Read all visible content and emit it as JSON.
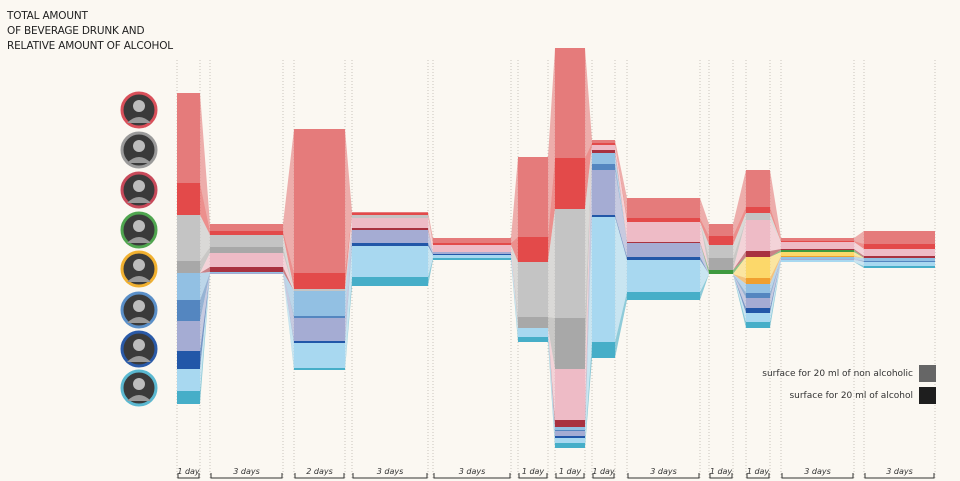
{
  "chart_data": {
    "type": "area",
    "title": [
      "TOTAL AMOUNT",
      "OF BEVERAGE DRUNK AND",
      "RELATIVE AMOUNT OF ALCOHOL"
    ],
    "periods": [
      "1 day",
      "3 days",
      "2 days",
      "3 days",
      "3 days",
      "1 day",
      "1 day",
      "1 day",
      "3 days",
      "1 day",
      "1 day",
      "3 days",
      "3 days"
    ],
    "people": [
      {
        "ring": "#d9505a",
        "non": "#e57b7b",
        "alc": "#e34a4a"
      },
      {
        "ring": "#9a9a9a",
        "non": "#c4c4c4",
        "alc": "#a8a8a8"
      },
      {
        "ring": "#c84a5a",
        "non": "#eebbc6",
        "alc": "#a83240"
      },
      {
        "ring": "#4fa54f",
        "non": "#8fcf8f",
        "alc": "#3f9a3f"
      },
      {
        "ring": "#f0b030",
        "non": "#fcd86a",
        "alc": "#f0a030"
      },
      {
        "ring": "#5a8fc8",
        "non": "#92c0e3",
        "alc": "#5486c0"
      },
      {
        "ring": "#2a5aa8",
        "non": "#a5acd3",
        "alc": "#2257a8"
      },
      {
        "ring": "#5ab8d0",
        "non": "#a8d8f0",
        "alc": "#46aec8"
      }
    ],
    "values_note_units": "surface (20 ml per unit square)",
    "amounts": [
      [
        [
          90,
          32
        ],
        [
          46,
          12
        ],
        [
          0,
          0
        ],
        [
          0,
          0
        ],
        [
          0,
          0
        ],
        [
          27,
          21
        ],
        [
          30,
          18
        ],
        [
          22,
          13
        ]
      ],
      [
        [
          7,
          4
        ],
        [
          12,
          6
        ],
        [
          14,
          5
        ],
        [
          0,
          0
        ],
        [
          0,
          0
        ],
        [
          1,
          0
        ],
        [
          1,
          0
        ],
        [
          0,
          0
        ]
      ],
      [
        [
          144,
          16
        ],
        [
          2,
          0
        ],
        [
          0,
          0
        ],
        [
          0,
          0
        ],
        [
          0,
          0
        ],
        [
          25,
          2
        ],
        [
          23,
          2
        ],
        [
          25,
          2
        ]
      ],
      [
        [
          1,
          2
        ],
        [
          3,
          0
        ],
        [
          10,
          2
        ],
        [
          0,
          0
        ],
        [
          0,
          0
        ],
        [
          0,
          0
        ],
        [
          13,
          3
        ],
        [
          31,
          9
        ]
      ],
      [
        [
          5,
          2
        ],
        [
          0,
          0
        ],
        [
          7,
          0
        ],
        [
          0,
          0
        ],
        [
          0,
          0
        ],
        [
          0,
          0
        ],
        [
          2,
          1
        ],
        [
          3,
          2
        ]
      ],
      [
        [
          80,
          25
        ],
        [
          55,
          11
        ],
        [
          0,
          0
        ],
        [
          0,
          0
        ],
        [
          0,
          0
        ],
        [
          0,
          0
        ],
        [
          0,
          0
        ],
        [
          9,
          5
        ]
      ],
      [
        [
          110,
          51
        ],
        [
          109,
          51
        ],
        [
          51,
          7
        ],
        [
          0,
          0
        ],
        [
          0,
          0
        ],
        [
          3,
          1
        ],
        [
          5,
          2
        ],
        [
          5,
          5
        ]
      ],
      [
        [
          3,
          2
        ],
        [
          0,
          0
        ],
        [
          5,
          3
        ],
        [
          0,
          0
        ],
        [
          0,
          0
        ],
        [
          11,
          6
        ],
        [
          45,
          2
        ],
        [
          125,
          16
        ]
      ],
      [
        [
          20,
          4
        ],
        [
          0,
          0
        ],
        [
          20,
          1
        ],
        [
          0,
          0
        ],
        [
          0,
          0
        ],
        [
          0,
          0
        ],
        [
          14,
          3
        ],
        [
          32,
          8
        ]
      ],
      [
        [
          12,
          9
        ],
        [
          13,
          12
        ],
        [
          0,
          0
        ],
        [
          0,
          4
        ],
        [
          0,
          0
        ],
        [
          0,
          0
        ],
        [
          0,
          0
        ],
        [
          0,
          0
        ]
      ],
      [
        [
          37,
          6
        ],
        [
          7,
          0
        ],
        [
          31,
          6
        ],
        [
          0,
          0
        ],
        [
          21,
          6
        ],
        [
          9,
          5
        ],
        [
          10,
          5
        ],
        [
          9,
          6
        ]
      ],
      [
        [
          3,
          1
        ],
        [
          0,
          0
        ],
        [
          7,
          1
        ],
        [
          0,
          2
        ],
        [
          4,
          1
        ],
        [
          2,
          0
        ],
        [
          1,
          0
        ],
        [
          2,
          0
        ]
      ],
      [
        [
          13,
          5
        ],
        [
          0,
          0
        ],
        [
          7,
          2
        ],
        [
          0,
          0
        ],
        [
          0,
          0
        ],
        [
          3,
          1
        ],
        [
          0,
          0
        ],
        [
          4,
          2
        ]
      ]
    ],
    "legend": {
      "non_alcoholic": "surface for 20 ml of non alcoholic",
      "alcohol": "surface for 20 ml of alcohol",
      "non_color": "#666666",
      "alc_color": "#1e1e1e"
    }
  }
}
